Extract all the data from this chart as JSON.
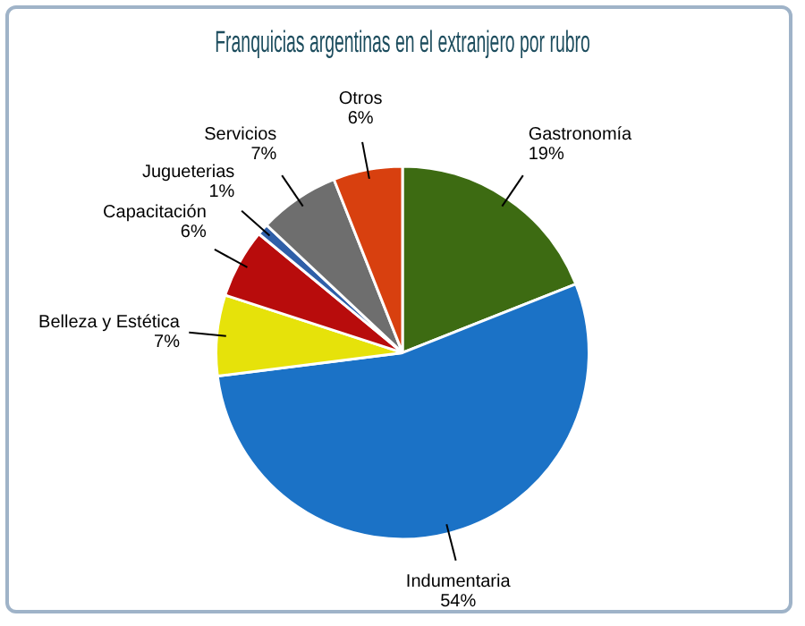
{
  "chart_data": {
    "type": "pie",
    "title": "Franquicias argentinas en el extranjero por rubro",
    "categories": [
      "Gastronomía",
      "Indumentaria",
      "Belleza y Estética",
      "Capacitación",
      "Jugueterias",
      "Servicios",
      "Otros"
    ],
    "values": [
      19,
      54,
      7,
      6,
      1,
      7,
      6
    ],
    "value_labels": [
      "19%",
      "54%",
      "7%",
      "6%",
      "1%",
      "7%",
      "6%"
    ],
    "colors": [
      "#3d6b12",
      "#1b72c6",
      "#e6e20a",
      "#b80c0c",
      "#2f5fa8",
      "#6e6e6e",
      "#d8400f"
    ],
    "legend": false
  }
}
